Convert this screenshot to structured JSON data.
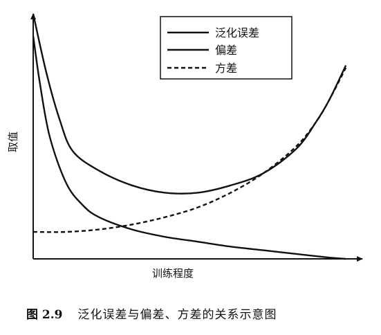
{
  "chart_data": {
    "type": "line",
    "title": "",
    "xlabel": "训练程度",
    "ylabel": "取值",
    "xlim": [
      0,
      1
    ],
    "ylim": [
      0,
      1
    ],
    "ticks_shown": false,
    "grid": false,
    "legend": {
      "placement": "top-center",
      "boxed": true
    },
    "series": [
      {
        "name": "泛化误差",
        "style": "solid",
        "x": [
          0,
          0.04,
          0.08,
          0.12,
          0.2,
          0.3,
          0.4,
          0.5,
          0.6,
          0.7,
          0.8,
          0.86,
          0.9,
          0.95
        ],
        "y": [
          1.0,
          0.76,
          0.57,
          0.44,
          0.36,
          0.3,
          0.27,
          0.27,
          0.3,
          0.35,
          0.45,
          0.56,
          0.65,
          0.79
        ]
      },
      {
        "name": "偏差",
        "style": "solid",
        "x": [
          0,
          0.02,
          0.05,
          0.1,
          0.15,
          0.2,
          0.3,
          0.4,
          0.5,
          0.6,
          0.7,
          0.8,
          0.9,
          0.95
        ],
        "y": [
          0.91,
          0.72,
          0.5,
          0.31,
          0.22,
          0.17,
          0.12,
          0.09,
          0.07,
          0.05,
          0.035,
          0.02,
          0.005,
          0.0
        ]
      },
      {
        "name": "方差",
        "style": "dashed",
        "x": [
          0,
          0.1,
          0.2,
          0.3,
          0.4,
          0.5,
          0.6,
          0.7,
          0.8,
          0.86,
          0.9,
          0.95
        ],
        "y": [
          0.11,
          0.11,
          0.12,
          0.14,
          0.17,
          0.21,
          0.27,
          0.35,
          0.46,
          0.56,
          0.65,
          0.78
        ]
      }
    ]
  },
  "caption": {
    "number": "图 2.9",
    "text": "泛化误差与偏差、方差的关系示意图"
  }
}
